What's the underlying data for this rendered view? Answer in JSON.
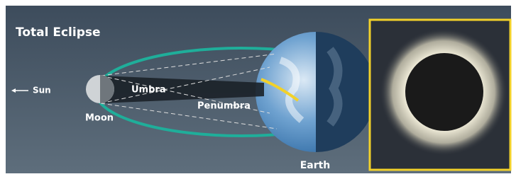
{
  "title": "Total Eclipse",
  "labels": {
    "sun": "Sun",
    "moon": "Moon",
    "umbra": "Umbra",
    "penumbra": "Penumbra",
    "earth": "Earth"
  }
}
